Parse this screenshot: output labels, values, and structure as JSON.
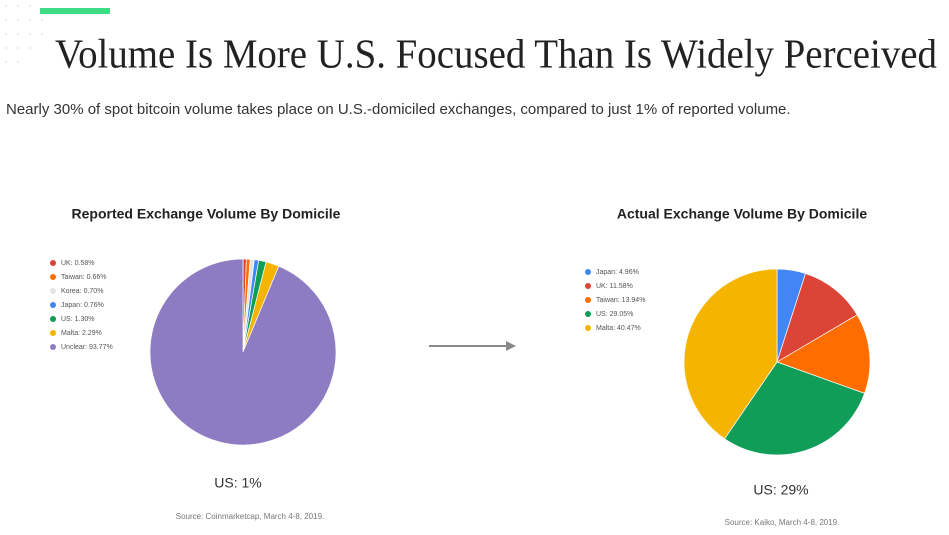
{
  "title": "Volume Is More U.S. Focused Than Is Widely Perceived",
  "subtitle": "Nearly 30% of spot bitcoin volume takes place on U.S.-domiciled exchanges, compared to just 1% of reported volume.",
  "chart_data": [
    {
      "type": "pie",
      "title": "Reported Exchange Volume By Domicile",
      "categories": [
        "UK: 0.58%",
        "Taiwan: 0.66%",
        "Korea: 0.70%",
        "Japan: 0.76%",
        "US: 1.30%",
        "Malta: 2.29%",
        "Unclear: 93.77%"
      ],
      "values": [
        0.58,
        0.66,
        0.7,
        0.76,
        1.3,
        2.29,
        93.77
      ],
      "colors": [
        "#db4437",
        "#ff6d00",
        "#e3e3e3",
        "#4285f4",
        "#0f9d58",
        "#f4b400",
        "#8e7cc3"
      ],
      "note": "US: 1%",
      "source": "Source: Coinmarketcap, March 4-8, 2019."
    },
    {
      "type": "pie",
      "title": "Actual Exchange Volume By Domicile",
      "categories": [
        "Japan: 4.96%",
        "UK: 11.58%",
        "Taiwan: 13.94%",
        "US: 29.05%",
        "Malta: 40.47%"
      ],
      "values": [
        4.96,
        11.58,
        13.94,
        29.05,
        40.47
      ],
      "colors": [
        "#4285f4",
        "#db4437",
        "#ff6d00",
        "#0f9d58",
        "#f4b400"
      ],
      "note": "US: 29%",
      "source": "Source: Kaiko, March 4-8, 2019."
    }
  ]
}
